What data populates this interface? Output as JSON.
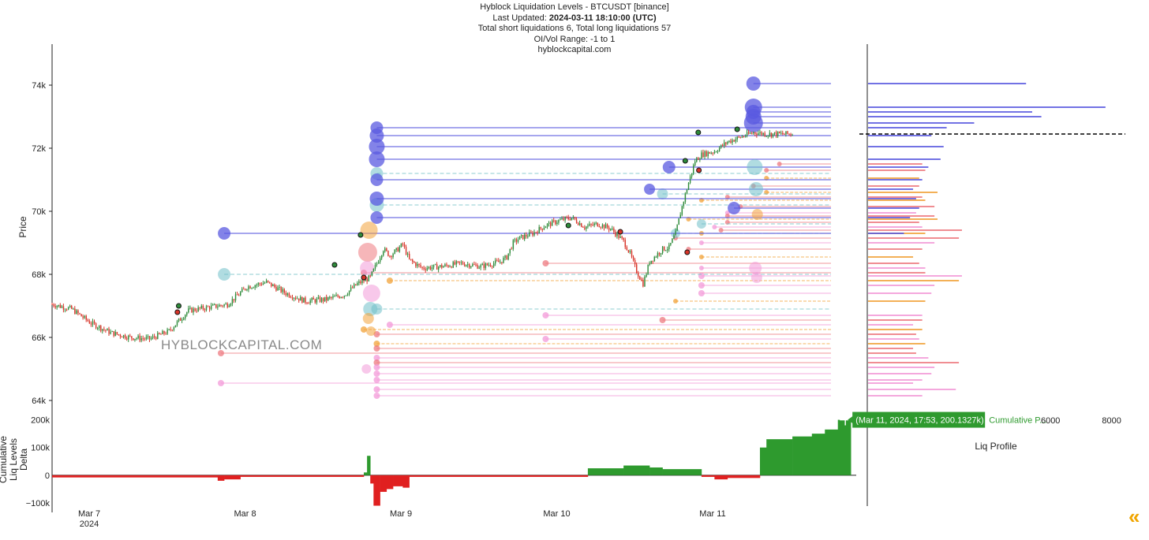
{
  "header": {
    "title": "Hyblock Liquidation Levels - BTCUSDT [binance]",
    "updated_label": "Last Updated: ",
    "updated_value": "2024-03-11 18:10:00 (UTC)",
    "totals": "Total short liquidations 6, Total long liquidations 57",
    "range": "OI/Vol Range: -1 to 1",
    "site": "hyblockcapital.com"
  },
  "watermark": "HYBLOCKCAPITAL.COM",
  "colors": {
    "up": "#2e8b3a",
    "down": "#d8352a",
    "short_liq": "#5a5ae0",
    "short_liq_light": "#70c0c8",
    "long_liq_red": "#ee7a80",
    "long_liq_orange": "#f2a33a",
    "long_liq_pink": "#f39ad8",
    "delta_pos": "#2e9a2e",
    "delta_neg": "#e02020"
  },
  "chart_data": [
    {
      "type": "line",
      "name_label": "Price",
      "ylabel": "Price",
      "ylim": [
        63700,
        75300
      ],
      "yticks": [
        64000,
        66000,
        68000,
        70000,
        72000,
        74000
      ],
      "ytick_labels": [
        "64k",
        "66k",
        "68k",
        "70k",
        "72k",
        "74k"
      ],
      "xrange": [
        "2024-03-07 00:00",
        "2024-03-11 18:10"
      ],
      "xticks": [
        "Mar 7",
        "Mar 8",
        "Mar 9",
        "Mar 10",
        "Mar 11"
      ],
      "xtick_year": "2024",
      "current_price": 72450,
      "price_path": [
        [
          0,
          67050
        ],
        [
          3,
          66900
        ],
        [
          6,
          66450
        ],
        [
          9,
          66150
        ],
        [
          12,
          66000
        ],
        [
          15,
          65950
        ],
        [
          18,
          66200
        ],
        [
          21,
          66850
        ],
        [
          24,
          66950
        ],
        [
          27,
          67050
        ],
        [
          30,
          67600
        ],
        [
          33,
          67750
        ],
        [
          36,
          67400
        ],
        [
          39,
          67150
        ],
        [
          42,
          67200
        ],
        [
          45,
          67350
        ],
        [
          47,
          67700
        ],
        [
          49,
          67900
        ],
        [
          50,
          68350
        ],
        [
          51,
          68800
        ],
        [
          52,
          68600
        ],
        [
          53,
          68750
        ],
        [
          54,
          68950
        ],
        [
          55,
          68450
        ],
        [
          57,
          68200
        ],
        [
          60,
          68250
        ],
        [
          63,
          68350
        ],
        [
          66,
          68250
        ],
        [
          69,
          68400
        ],
        [
          70,
          68550
        ],
        [
          71,
          69000
        ],
        [
          72,
          69150
        ],
        [
          74,
          69300
        ],
        [
          76,
          69550
        ],
        [
          78,
          69700
        ],
        [
          80,
          69800
        ],
        [
          82,
          69500
        ],
        [
          84,
          69600
        ],
        [
          86,
          69450
        ],
        [
          88,
          69050
        ],
        [
          89,
          68650
        ],
        [
          90,
          68100
        ],
        [
          91,
          67700
        ],
        [
          92,
          68400
        ],
        [
          94,
          68800
        ],
        [
          95,
          68850
        ],
        [
          96,
          69300
        ],
        [
          97,
          70150
        ],
        [
          98,
          70900
        ],
        [
          99,
          71600
        ],
        [
          100,
          71800
        ],
        [
          102,
          71900
        ],
        [
          104,
          72200
        ],
        [
          106,
          72350
        ],
        [
          108,
          72500
        ],
        [
          110,
          72450
        ],
        [
          112,
          72450
        ],
        [
          114.17,
          72450
        ]
      ],
      "markers_green": [
        [
          19.5,
          67000
        ],
        [
          43.5,
          68300
        ],
        [
          47.5,
          69250
        ],
        [
          79.5,
          69550
        ],
        [
          97.5,
          71600
        ],
        [
          99.5,
          72500
        ],
        [
          105.5,
          72600
        ]
      ],
      "markers_red": [
        [
          19.3,
          66800
        ],
        [
          48,
          67900
        ],
        [
          87.5,
          69350
        ],
        [
          97.8,
          68700
        ],
        [
          99.6,
          71300
        ]
      ],
      "short_levels": [
        {
          "price": 74050,
          "start": 108,
          "profile": 5200,
          "size": 9
        },
        {
          "price": 73300,
          "start": 108,
          "profile": 7800,
          "size": 11
        },
        {
          "price": 73150,
          "start": 108,
          "profile": 5400,
          "size": 9
        },
        {
          "price": 73000,
          "start": 108,
          "profile": 5700,
          "size": 10
        },
        {
          "price": 72800,
          "start": 108,
          "profile": 3500,
          "size": 12
        },
        {
          "price": 72650,
          "start": 50,
          "profile": 2600,
          "size": 8
        },
        {
          "price": 72400,
          "start": 50,
          "profile": 2100,
          "size": 9
        },
        {
          "price": 72050,
          "start": 50,
          "profile": 2500,
          "size": 10
        },
        {
          "price": 71650,
          "start": 50,
          "profile": 2400,
          "size": 10
        },
        {
          "price": 71400,
          "start": 95,
          "profile": 2000,
          "size": 8
        },
        {
          "price": 71000,
          "start": 50,
          "profile": 1800,
          "size": 8
        },
        {
          "price": 70700,
          "start": 92,
          "profile": 1500,
          "size": 7
        },
        {
          "price": 70400,
          "start": 50,
          "profile": 1600,
          "size": 9
        },
        {
          "price": 70100,
          "start": 105,
          "profile": 1700,
          "size": 8
        },
        {
          "price": 69800,
          "start": 50,
          "profile": 1400,
          "size": 8
        },
        {
          "price": 69300,
          "start": 26.5,
          "profile": 1200,
          "size": 8
        }
      ],
      "light_levels": [
        {
          "price": 71200,
          "start": 50,
          "size": 8
        },
        {
          "price": 70550,
          "start": 94,
          "size": 7
        },
        {
          "price": 70200,
          "start": 50,
          "size": 9
        },
        {
          "price": 69600,
          "start": 100,
          "size": 6
        },
        {
          "price": 69300,
          "start": 96,
          "size": 6
        },
        {
          "price": 68000,
          "start": 26.5,
          "size": 8
        },
        {
          "price": 66900,
          "start": 50,
          "size": 7
        }
      ],
      "long_levels": [
        {
          "price": 71500,
          "start": 112,
          "color": "red",
          "profile": 1800,
          "size": 3
        },
        {
          "price": 71300,
          "start": 110,
          "color": "red",
          "profile": 1900,
          "size": 3
        },
        {
          "price": 71050,
          "start": 110,
          "color": "orange",
          "profile": 1700,
          "size": 3
        },
        {
          "price": 70800,
          "start": 108,
          "color": "red",
          "profile": 1700,
          "size": 3
        },
        {
          "price": 70600,
          "start": 110,
          "color": "orange",
          "profile": 2300,
          "size": 3
        },
        {
          "price": 70450,
          "start": 104,
          "color": "red",
          "profile": 1800,
          "size": 3
        },
        {
          "price": 70350,
          "start": 100,
          "color": "orange",
          "profile": 1900,
          "size": 3
        },
        {
          "price": 70150,
          "start": 106,
          "color": "red",
          "profile": 2200,
          "size": 3
        },
        {
          "price": 69950,
          "start": 104,
          "color": "pink",
          "profile": 1600,
          "size": 3
        },
        {
          "price": 69850,
          "start": 104,
          "color": "red",
          "profile": 2200,
          "size": 3
        },
        {
          "price": 69750,
          "start": 98,
          "color": "orange",
          "profile": 2300,
          "size": 3
        },
        {
          "price": 69650,
          "start": 104,
          "color": "red",
          "profile": 1700,
          "size": 3
        },
        {
          "price": 69500,
          "start": 102,
          "color": "pink",
          "profile": 1800,
          "size": 3
        },
        {
          "price": 69400,
          "start": 103,
          "color": "red",
          "profile": 3100,
          "size": 3
        },
        {
          "price": 69300,
          "start": 100,
          "color": "orange",
          "profile": 1900,
          "size": 3
        },
        {
          "price": 69150,
          "start": 96,
          "color": "red",
          "profile": 3000,
          "size": 3
        },
        {
          "price": 69000,
          "start": 100,
          "color": "pink",
          "profile": 2200,
          "size": 3
        },
        {
          "price": 68800,
          "start": 98,
          "color": "red",
          "profile": 1800,
          "size": 3
        },
        {
          "price": 68550,
          "start": 100,
          "color": "orange",
          "profile": 1500,
          "size": 3
        },
        {
          "price": 68350,
          "start": 76,
          "color": "red",
          "profile": 1700,
          "size": 4
        },
        {
          "price": 68200,
          "start": 100,
          "color": "pink",
          "profile": 1900,
          "size": 3
        },
        {
          "price": 68050,
          "start": 48,
          "color": "red",
          "profile": 1900,
          "size": 4
        },
        {
          "price": 67950,
          "start": 100,
          "color": "pink",
          "profile": 3100,
          "size": 4
        },
        {
          "price": 67800,
          "start": 52,
          "color": "orange",
          "profile": 3000,
          "size": 4
        },
        {
          "price": 67650,
          "start": 100,
          "color": "pink",
          "profile": 2200,
          "size": 4
        },
        {
          "price": 67400,
          "start": 100,
          "color": "pink",
          "profile": 2100,
          "size": 4
        },
        {
          "price": 67150,
          "start": 96,
          "color": "orange",
          "profile": 1900,
          "size": 3
        },
        {
          "price": 66700,
          "start": 76,
          "color": "pink",
          "profile": 1800,
          "size": 4
        },
        {
          "price": 66550,
          "start": 94,
          "color": "red",
          "profile": 1800,
          "size": 4
        },
        {
          "price": 66400,
          "start": 52,
          "color": "pink",
          "profile": 1500,
          "size": 4
        },
        {
          "price": 66250,
          "start": 48,
          "color": "orange",
          "profile": 1800,
          "size": 4
        },
        {
          "price": 66100,
          "start": 50,
          "color": "red",
          "profile": 1600,
          "size": 4
        },
        {
          "price": 65950,
          "start": 76,
          "color": "pink",
          "profile": 1700,
          "size": 4
        },
        {
          "price": 65800,
          "start": 50,
          "color": "orange",
          "profile": 1900,
          "size": 4
        },
        {
          "price": 65650,
          "start": 50,
          "color": "red",
          "profile": 1500,
          "size": 4
        },
        {
          "price": 65500,
          "start": 26,
          "color": "red",
          "profile": 1600,
          "size": 4
        },
        {
          "price": 65350,
          "start": 50,
          "color": "pink",
          "profile": 2000,
          "size": 4
        },
        {
          "price": 65200,
          "start": 50,
          "color": "red",
          "profile": 3000,
          "size": 4
        },
        {
          "price": 65050,
          "start": 50,
          "color": "pink",
          "profile": 2200,
          "size": 4
        },
        {
          "price": 64850,
          "start": 50,
          "color": "pink",
          "profile": 2100,
          "size": 4
        },
        {
          "price": 64650,
          "start": 50,
          "color": "pink",
          "profile": 1800,
          "size": 4
        },
        {
          "price": 64550,
          "start": 26,
          "color": "pink",
          "profile": 1500,
          "size": 4
        },
        {
          "price": 64350,
          "start": 50,
          "color": "pink",
          "profile": 2900,
          "size": 4
        },
        {
          "price": 64150,
          "start": 50,
          "color": "pink",
          "profile": 1800,
          "size": 4
        }
      ]
    },
    {
      "type": "area",
      "ylabel": "Cumulative Liq Levels Delta",
      "ylim": [
        -120000,
        230000
      ],
      "yticks": [
        -100000,
        0,
        100000,
        200000
      ],
      "ytick_labels": [
        "−100k",
        "0",
        "100k",
        "200k"
      ],
      "series_label": "Cumulative P...",
      "hover_label": "(Mar 11, 2024, 17:53, 200.1327k)",
      "delta_path": [
        [
          0,
          -8000
        ],
        [
          25.5,
          -8000
        ],
        [
          25.5,
          -20000
        ],
        [
          26.5,
          -15000
        ],
        [
          29,
          -15000
        ],
        [
          29,
          -6000
        ],
        [
          47.5,
          -6000
        ],
        [
          48,
          10000
        ],
        [
          48.5,
          70000
        ],
        [
          49,
          -30000
        ],
        [
          49.5,
          -110000
        ],
        [
          50.5,
          -60000
        ],
        [
          51.5,
          -50000
        ],
        [
          52.5,
          -40000
        ],
        [
          54,
          -45000
        ],
        [
          55,
          -6000
        ],
        [
          82.5,
          -6000
        ],
        [
          82.5,
          25000
        ],
        [
          88,
          35000
        ],
        [
          92,
          28000
        ],
        [
          94,
          22000
        ],
        [
          100,
          20000
        ],
        [
          100,
          -6000
        ],
        [
          102,
          -15000
        ],
        [
          104,
          -10000
        ],
        [
          109,
          -10000
        ],
        [
          109,
          100000
        ],
        [
          110,
          130000
        ],
        [
          114,
          140000
        ],
        [
          117,
          150000
        ],
        [
          119,
          165000
        ],
        [
          121,
          200000
        ],
        [
          123,
          200000
        ]
      ]
    },
    {
      "type": "bar",
      "title": "Liq Profile",
      "xticks": [
        6000,
        8000
      ],
      "xlim": [
        0,
        9000
      ]
    }
  ]
}
